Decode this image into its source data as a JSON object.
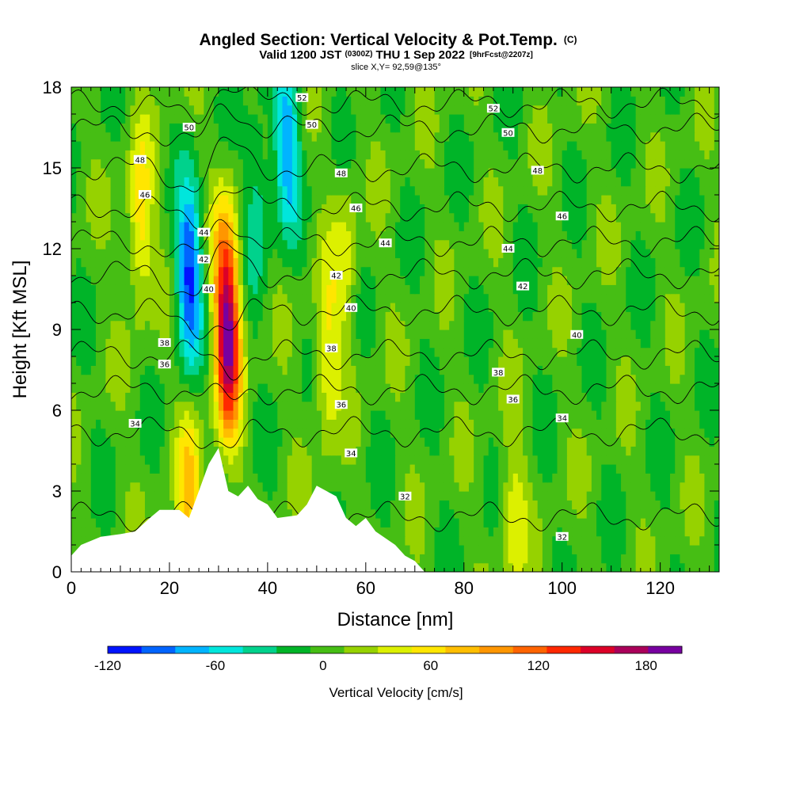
{
  "title": {
    "main": "Angled Section: Vertical Velocity & Pot.Temp.",
    "main_unit": "(C)",
    "valid_a": "Valid 1200 JST",
    "valid_z": "(0300Z)",
    "valid_b": "THU 1 Sep 2022",
    "valid_fcst": "[9hrFcst@2207z]",
    "slice": "slice X,Y= 92,59@135°"
  },
  "chart_data": {
    "type": "heatmap",
    "xlabel": "Distance [nm]",
    "ylabel": "Height [Kft MSL]",
    "xlim": [
      0,
      132
    ],
    "ylim": [
      0,
      18
    ],
    "x_ticks": [
      "0",
      "20",
      "40",
      "60",
      "80",
      "100",
      "120"
    ],
    "x_tick_values": [
      0,
      20,
      40,
      60,
      80,
      100,
      120
    ],
    "y_ticks": [
      "0",
      "3",
      "6",
      "9",
      "12",
      "15",
      "18"
    ],
    "y_tick_values": [
      0,
      3,
      6,
      9,
      12,
      15,
      18
    ],
    "colorbar": {
      "label": "Vertical Velocity [cm/s]",
      "range": [
        -120,
        200
      ],
      "step": 20,
      "tick_labels": [
        "-120",
        "-60",
        "0",
        "60",
        "120",
        "180"
      ],
      "tick_values": [
        -120,
        -60,
        0,
        60,
        120,
        180
      ],
      "colors": [
        "#0014ff",
        "#0064ff",
        "#00b4ff",
        "#00e6dc",
        "#00d28c",
        "#00b428",
        "#46be14",
        "#96d200",
        "#dcf000",
        "#ffe600",
        "#ffbe00",
        "#ff9600",
        "#ff6400",
        "#ff2800",
        "#dc0028",
        "#aa005a",
        "#7800a0"
      ]
    },
    "terrain": [
      [
        0,
        0.6
      ],
      [
        2,
        1.0
      ],
      [
        6,
        1.3
      ],
      [
        10,
        1.4
      ],
      [
        13,
        1.5
      ],
      [
        16,
        2.0
      ],
      [
        18,
        2.3
      ],
      [
        22,
        2.3
      ],
      [
        24,
        2.0
      ],
      [
        26,
        3.0
      ],
      [
        28,
        4.0
      ],
      [
        30,
        4.6
      ],
      [
        32,
        3.0
      ],
      [
        34,
        2.8
      ],
      [
        36,
        3.2
      ],
      [
        38,
        2.7
      ],
      [
        40,
        2.5
      ],
      [
        42,
        2.0
      ],
      [
        46,
        2.1
      ],
      [
        48,
        2.5
      ],
      [
        50,
        3.2
      ],
      [
        54,
        2.8
      ],
      [
        56,
        2.0
      ],
      [
        58,
        1.7
      ],
      [
        60,
        2.0
      ],
      [
        62,
        1.5
      ],
      [
        66,
        1.0
      ],
      [
        68,
        0.6
      ],
      [
        70,
        0.4
      ],
      [
        72,
        0.0
      ]
    ],
    "updrafts": [
      {
        "x": 32,
        "y": 8,
        "peak": 150
      },
      {
        "x": 31.5,
        "y": 11,
        "peak": 100
      },
      {
        "x": 14,
        "y": 13,
        "peak": 70
      },
      {
        "x": 24,
        "y": 3,
        "peak": 70
      },
      {
        "x": 52,
        "y": 8,
        "peak": 55
      },
      {
        "x": 56,
        "y": 11.5,
        "peak": 40
      },
      {
        "x": 90,
        "y": 2,
        "peak": 45
      }
    ],
    "downdrafts": [
      {
        "x": 24,
        "y": 11,
        "peak": -110
      },
      {
        "x": 44,
        "y": 16,
        "peak": -80
      },
      {
        "x": 38,
        "y": 14,
        "peak": -45
      }
    ],
    "theta_contours": [
      {
        "value": 32,
        "height": 2.8,
        "label": "32",
        "label_x": 68
      },
      {
        "value": 32,
        "height": 1.3,
        "label": "32",
        "label_x": 100
      },
      {
        "value": 34,
        "height": 5.5,
        "label": "34",
        "label_x": 13
      },
      {
        "value": 34,
        "height": 4.4,
        "label": "34",
        "label_x": 57
      },
      {
        "value": 34,
        "height": 5.7,
        "label": "34",
        "label_x": 100
      },
      {
        "value": 36,
        "height": 7.7,
        "label": "36",
        "label_x": 19
      },
      {
        "value": 36,
        "height": 6.2,
        "label": "36",
        "label_x": 55
      },
      {
        "value": 36,
        "height": 6.4,
        "label": "36",
        "label_x": 90
      },
      {
        "value": 38,
        "height": 8.5,
        "label": "38",
        "label_x": 19
      },
      {
        "value": 38,
        "height": 8.3,
        "label": "38",
        "label_x": 53
      },
      {
        "value": 38,
        "height": 7.4,
        "label": "38",
        "label_x": 87
      },
      {
        "value": 40,
        "height": 10.5,
        "label": "40",
        "label_x": 28
      },
      {
        "value": 40,
        "height": 9.8,
        "label": "40",
        "label_x": 57
      },
      {
        "value": 40,
        "height": 8.8,
        "label": "40",
        "label_x": 103
      },
      {
        "value": 42,
        "height": 11.6,
        "label": "42",
        "label_x": 27
      },
      {
        "value": 42,
        "height": 11.0,
        "label": "42",
        "label_x": 54
      },
      {
        "value": 42,
        "height": 10.6,
        "label": "42",
        "label_x": 92
      },
      {
        "value": 44,
        "height": 12.6,
        "label": "44",
        "label_x": 27
      },
      {
        "value": 44,
        "height": 12.2,
        "label": "44",
        "label_x": 64
      },
      {
        "value": 44,
        "height": 12.0,
        "label": "44",
        "label_x": 89
      },
      {
        "value": 46,
        "height": 14.0,
        "label": "46",
        "label_x": 15
      },
      {
        "value": 46,
        "height": 13.5,
        "label": "46",
        "label_x": 58
      },
      {
        "value": 46,
        "height": 13.2,
        "label": "46",
        "label_x": 100
      },
      {
        "value": 48,
        "height": 15.3,
        "label": "48",
        "label_x": 14
      },
      {
        "value": 48,
        "height": 14.8,
        "label": "48",
        "label_x": 55
      },
      {
        "value": 48,
        "height": 14.9,
        "label": "48",
        "label_x": 95
      },
      {
        "value": 50,
        "height": 16.5,
        "label": "50",
        "label_x": 24
      },
      {
        "value": 50,
        "height": 16.6,
        "label": "50",
        "label_x": 49
      },
      {
        "value": 50,
        "height": 16.3,
        "label": "50",
        "label_x": 89
      },
      {
        "value": 52,
        "height": 17.6,
        "label": "52",
        "label_x": 47
      },
      {
        "value": 52,
        "height": 17.2,
        "label": "52",
        "label_x": 86
      }
    ]
  }
}
